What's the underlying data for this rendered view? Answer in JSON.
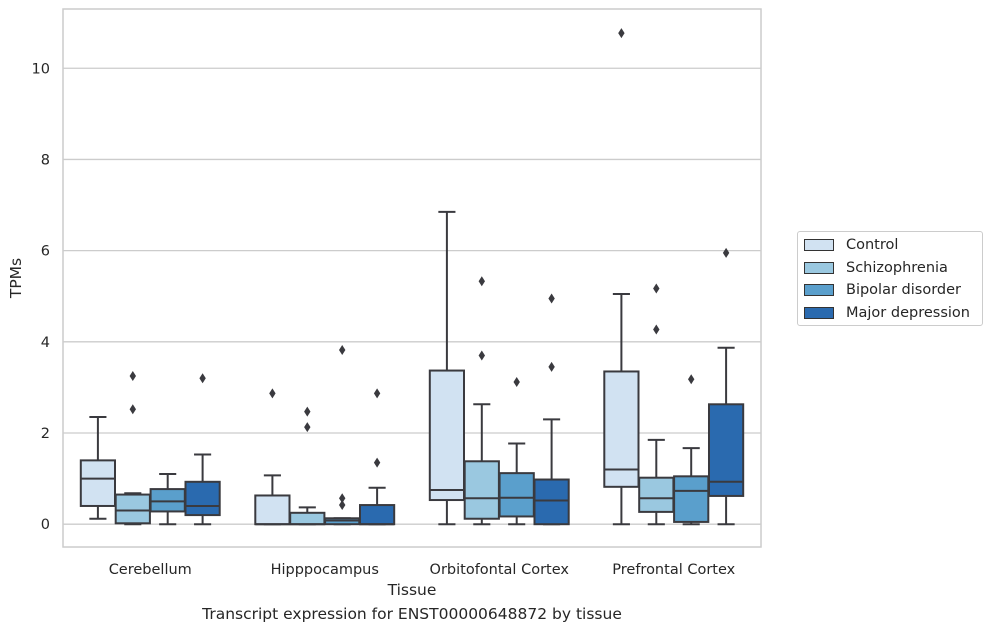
{
  "caption": "Transcript expression for ENST00000648872 by tissue",
  "chart_data": {
    "type": "box",
    "title": "",
    "xlabel": "Tissue",
    "ylabel": "TPMs",
    "ylim": [
      -0.5,
      11.3
    ],
    "yticks": [
      0,
      2,
      4,
      6,
      8,
      10
    ],
    "grid": "horizontal",
    "legend_position": "right",
    "categories": [
      "Cerebellum",
      "Hipppocampus",
      "Orbitofontal Cortex",
      "Prefrontal Cortex"
    ],
    "series": [
      {
        "name": "Control",
        "color": "#d1e2f2",
        "boxes": [
          {
            "whislo": 0.12,
            "q1": 0.4,
            "med": 1.0,
            "q3": 1.4,
            "whishi": 2.35,
            "fliers": []
          },
          {
            "whislo": 0.0,
            "q1": 0.0,
            "med": 0.0,
            "q3": 0.63,
            "whishi": 1.07,
            "fliers": [
              2.87
            ]
          },
          {
            "whislo": 0.0,
            "q1": 0.53,
            "med": 0.75,
            "q3": 3.37,
            "whishi": 6.85,
            "fliers": []
          },
          {
            "whislo": 0.0,
            "q1": 0.82,
            "med": 1.2,
            "q3": 3.35,
            "whishi": 5.05,
            "fliers": [
              10.77
            ]
          }
        ]
      },
      {
        "name": "Schizophrenia",
        "color": "#9ac8e0",
        "boxes": [
          {
            "whislo": 0.0,
            "q1": 0.02,
            "med": 0.3,
            "q3": 0.65,
            "whishi": 0.68,
            "fliers": [
              2.52,
              3.25
            ]
          },
          {
            "whislo": 0.0,
            "q1": 0.0,
            "med": 0.0,
            "q3": 0.25,
            "whishi": 0.37,
            "fliers": [
              2.13,
              2.47
            ]
          },
          {
            "whislo": 0.0,
            "q1": 0.12,
            "med": 0.57,
            "q3": 1.38,
            "whishi": 2.63,
            "fliers": [
              3.7,
              5.33
            ]
          },
          {
            "whislo": 0.0,
            "q1": 0.27,
            "med": 0.57,
            "q3": 1.02,
            "whishi": 1.85,
            "fliers": [
              4.27,
              5.17
            ]
          }
        ]
      },
      {
        "name": "Bipolar disorder",
        "color": "#5a9fcc",
        "boxes": [
          {
            "whislo": 0.0,
            "q1": 0.28,
            "med": 0.5,
            "q3": 0.77,
            "whishi": 1.1,
            "fliers": []
          },
          {
            "whislo": 0.0,
            "q1": 0.0,
            "med": 0.08,
            "q3": 0.13,
            "whishi": 0.13,
            "fliers": [
              0.42,
              0.57,
              3.82
            ]
          },
          {
            "whislo": 0.0,
            "q1": 0.17,
            "med": 0.58,
            "q3": 1.12,
            "whishi": 1.77,
            "fliers": [
              3.12
            ]
          },
          {
            "whislo": 0.0,
            "q1": 0.05,
            "med": 0.73,
            "q3": 1.05,
            "whishi": 1.67,
            "fliers": [
              3.18
            ]
          }
        ]
      },
      {
        "name": "Major depression",
        "color": "#2a6aaf",
        "boxes": [
          {
            "whislo": 0.0,
            "q1": 0.2,
            "med": 0.4,
            "q3": 0.93,
            "whishi": 1.53,
            "fliers": [
              3.2
            ]
          },
          {
            "whislo": 0.0,
            "q1": 0.0,
            "med": 0.0,
            "q3": 0.42,
            "whishi": 0.8,
            "fliers": [
              1.35,
              2.87
            ]
          },
          {
            "whislo": 0.0,
            "q1": 0.0,
            "med": 0.52,
            "q3": 0.98,
            "whishi": 2.3,
            "fliers": [
              3.45,
              4.95
            ]
          },
          {
            "whislo": 0.0,
            "q1": 0.62,
            "med": 0.93,
            "q3": 2.63,
            "whishi": 3.87,
            "fliers": [
              5.95
            ]
          }
        ]
      }
    ]
  }
}
